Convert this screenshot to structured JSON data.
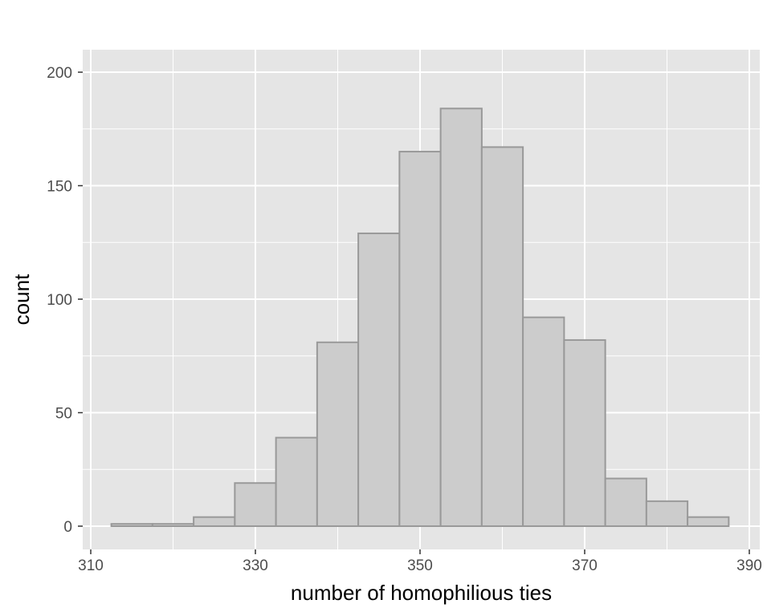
{
  "chart_data": {
    "type": "bar",
    "subtype": "histogram",
    "title": "",
    "xlabel": "number of homophilious ties",
    "ylabel": "count",
    "xlim": [
      310,
      390
    ],
    "ylim": [
      0,
      200
    ],
    "x_ticks": [
      310,
      330,
      350,
      370,
      390
    ],
    "y_ticks": [
      0,
      50,
      100,
      150,
      200
    ],
    "bin_width": 5,
    "bins": [
      {
        "x0": 312.5,
        "x1": 317.5,
        "count": 1
      },
      {
        "x0": 317.5,
        "x1": 322.5,
        "count": 1
      },
      {
        "x0": 322.5,
        "x1": 327.5,
        "count": 4
      },
      {
        "x0": 327.5,
        "x1": 332.5,
        "count": 19
      },
      {
        "x0": 332.5,
        "x1": 337.5,
        "count": 39
      },
      {
        "x0": 337.5,
        "x1": 342.5,
        "count": 81
      },
      {
        "x0": 342.5,
        "x1": 347.5,
        "count": 129
      },
      {
        "x0": 347.5,
        "x1": 352.5,
        "count": 165
      },
      {
        "x0": 352.5,
        "x1": 357.5,
        "count": 184
      },
      {
        "x0": 357.5,
        "x1": 362.5,
        "count": 167
      },
      {
        "x0": 362.5,
        "x1": 367.5,
        "count": 92
      },
      {
        "x0": 367.5,
        "x1": 372.5,
        "count": 82
      },
      {
        "x0": 372.5,
        "x1": 377.5,
        "count": 21
      },
      {
        "x0": 377.5,
        "x1": 382.5,
        "count": 11
      },
      {
        "x0": 382.5,
        "x1": 387.5,
        "count": 4
      }
    ],
    "grid": true,
    "legend": "none",
    "colors": {
      "panel_background": "#e5e5e5",
      "grid_line": "#ffffff",
      "bar_fill": "#cccccc",
      "bar_outline": "#999999"
    }
  }
}
